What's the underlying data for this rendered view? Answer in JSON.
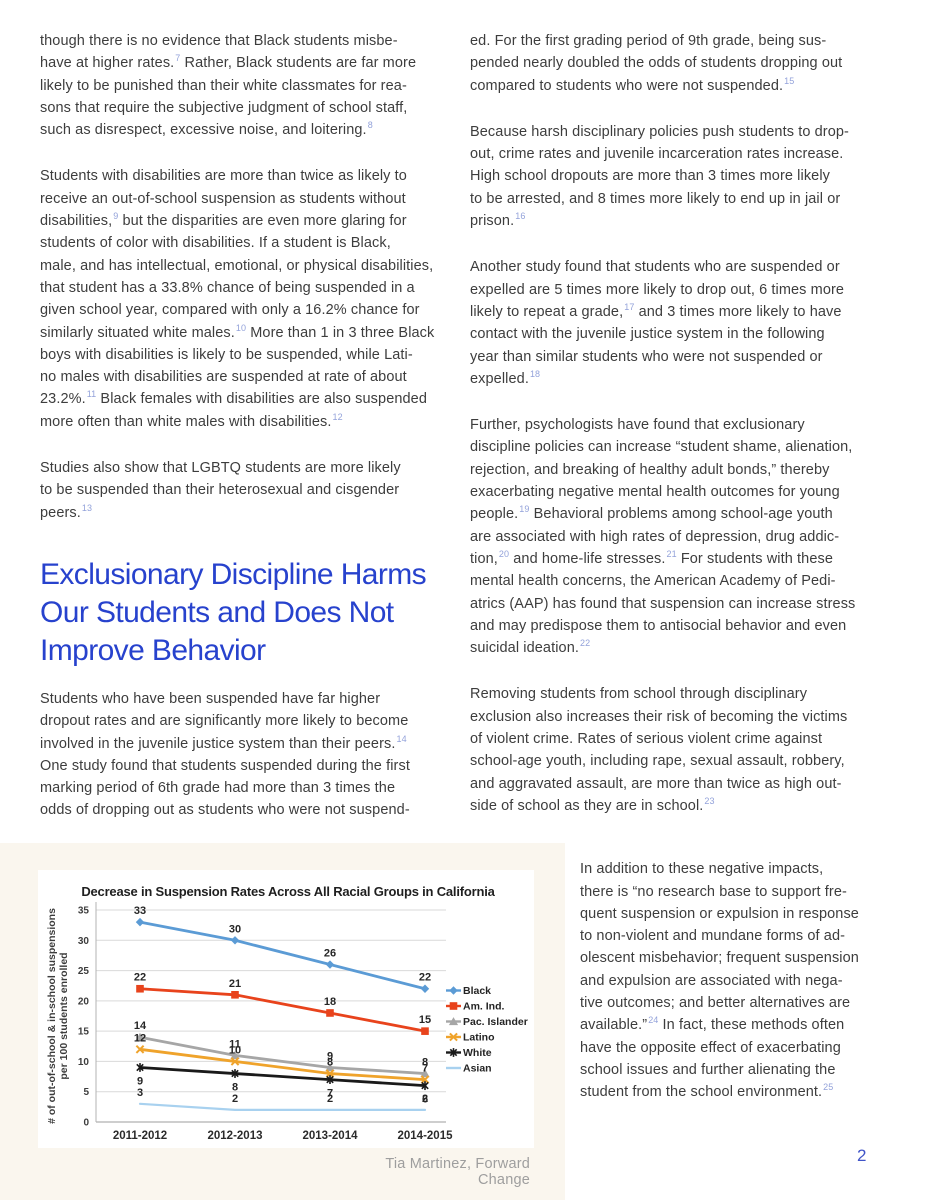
{
  "page": {
    "number": "2"
  },
  "article": {
    "left_column": {
      "paragraphs_before_heading": [
        "though there is no evidence that Black students misbe-\nhave at higher rates.[7] Rather, Black students are far more\nlikely to be punished than their white classmates for rea-\nsons that require the subjective judgment of school staff,\nsuch as disrespect, excessive noise, and loitering.[8]",
        "Students with disabilities are more than twice as likely to\nreceive an out-of-school suspension as students without\ndisabilities,[9] but the disparities are even more glaring for\nstudents of color with disabilities. If a student is Black,\nmale, and has intellectual, emotional, or physical disabilities,\nthat student has a 33.8% chance of being suspended in a\ngiven school year, compared with only a 16.2% chance for\nsimilarly situated white males.[10] More than 1 in 3 three Black\nboys with disabilities is likely to be suspended, while Lati-\nno males with disabilities are suspended at rate of about\n23.2%.[11] Black females with disabilities are also suspended\nmore often than white males with disabilities.[12]",
        "Studies also show that LGBTQ students are more likely\nto be suspended than their heterosexual and cisgender\npeers.[13]"
      ],
      "heading": "Exclusionary Discipline Harms\nOur Students and Does Not\nImprove Behavior",
      "paragraphs_after_heading": [
        "Students who have been suspended have far higher\ndropout rates and are significantly more likely to become\ninvolved in the juvenile justice system than their peers.[14]\nOne study found that students suspended during the first\nmarking period of 6th grade had more than 3 times the\nodds of dropping out as students who were not suspend-"
      ]
    },
    "right_column": {
      "paragraphs": [
        "ed. For the first grading period of 9th grade, being sus-\npended nearly doubled the odds of students dropping out\ncompared to students who were not suspended.[15]",
        "Because harsh disciplinary policies push students to drop-\nout, crime rates and juvenile incarceration rates increase.\nHigh school dropouts are more than 3 times more likely\nto be arrested, and 8 times more likely to end up in jail or\nprison.[16]",
        "Another study found that students who are suspended or\nexpelled are 5 times more likely to drop out, 6 times more\nlikely to repeat a grade,[17]  and 3 times more likely to have\ncontact with the juvenile justice system in the following\nyear than similar students who were not suspended or\nexpelled.[18]",
        "Further, psychologists have found that exclusionary\ndiscipline policies can increase “student shame, alienation,\nrejection, and breaking of healthy adult bonds,” thereby\nexacerbating negative mental health outcomes for young\npeople.[19]  Behavioral problems among school-age youth\nare associated with high rates of depression, drug addic-\ntion,[20] and home-life stresses.[21]  For students with these\nmental health concerns, the American Academy of Pedi-\natrics (AAP) has found that suspension can increase stress\nand may predispose them to antisocial behavior and even\nsuicidal ideation.[22]",
        "Removing students from school through disciplinary\nexclusion also increases their risk of becoming the victims\nof violent crime. Rates of serious violent crime against\nschool-age youth, including rape, sexual assault, robbery,\nand aggravated assault, are more than twice as high out-\nside of school as they are in school.[23]"
      ],
      "narrow_paragraph": "In addition to these negative impacts,\nthere is “no research base to support fre-\nquent suspension or expulsion in response\nto non-violent and mundane forms of ad-\nolescent misbehavior; frequent suspension\nand expulsion are associated with nega-\ntive outcomes; and better alternatives are\navailable.”[24]  In fact, these methods often\nhave the opposite effect of exacerbating\nschool issues and further alienating the\nstudent from the school environment.[25]"
    }
  },
  "figure": {
    "caption": "Tia Martinez, Forward Change"
  },
  "chart_data": {
    "type": "line",
    "title": "Decrease in Suspension Rates Across All Racial Groups in California",
    "ylabel": "# of out-of-school & in-school suspensions\nper 100 students enrolled",
    "xlabel": "",
    "categories": [
      "2011-2012",
      "2012-2013",
      "2013-2014",
      "2014-2015"
    ],
    "ylim": [
      0,
      35
    ],
    "ytick_step": 5,
    "grid": true,
    "legend_position": "right",
    "series": [
      {
        "name": "Black",
        "color": "#5B9BD5",
        "marker": "diamond",
        "label_side": "above",
        "values": [
          33,
          30,
          26,
          22
        ]
      },
      {
        "name": "Am. Ind.",
        "color": "#E8431C",
        "marker": "square",
        "label_side": "above",
        "values": [
          22,
          21,
          18,
          15
        ]
      },
      {
        "name": "Pac. Islander",
        "color": "#A6A6A6",
        "marker": "triangle",
        "label_side": "above",
        "values": [
          14,
          11,
          9,
          8
        ]
      },
      {
        "name": "Latino",
        "color": "#EFA32B",
        "marker": "x",
        "label_side": "above",
        "values": [
          12,
          10,
          8,
          7
        ]
      },
      {
        "name": "White",
        "color": "#1A1A1A",
        "marker": "asterisk",
        "label_side": "below",
        "values": [
          9,
          8,
          7,
          6
        ]
      },
      {
        "name": "Asian",
        "color": "#A8D1EF",
        "marker": "none",
        "label_side": "above",
        "values": [
          3,
          2,
          2,
          2
        ]
      }
    ],
    "source": "Tia Martinez, Forward Change"
  }
}
